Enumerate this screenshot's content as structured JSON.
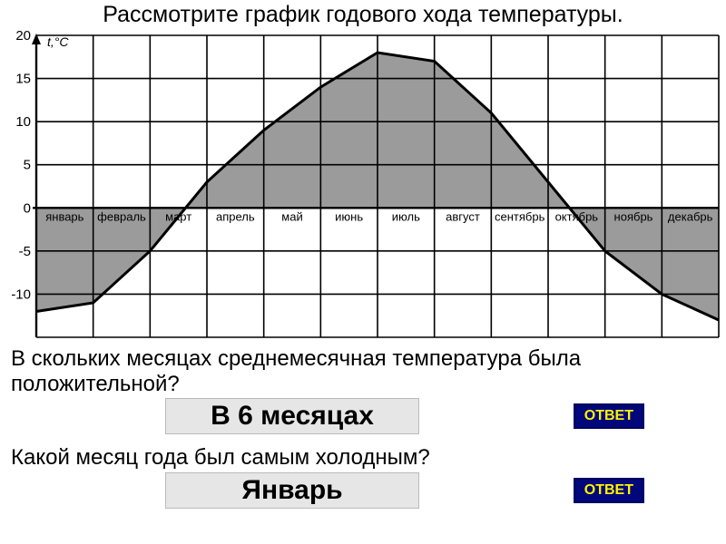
{
  "title": "Рассмотрите график годового хода температуры.",
  "chart": {
    "type": "area",
    "y_axis_label": "t,°C",
    "ylim": [
      -15,
      20
    ],
    "yticks": [
      -15,
      -10,
      -5,
      0,
      5,
      10,
      15,
      20
    ],
    "months": [
      "январь",
      "февраль",
      "март",
      "апрель",
      "май",
      "июнь",
      "июль",
      "август",
      "сентябрь",
      "октябрь",
      "ноябрь",
      "декабрь"
    ],
    "values_start": [
      -12,
      -11,
      -5,
      3,
      9,
      14,
      18,
      17,
      11,
      3,
      -5,
      -10
    ],
    "values_end": [
      -11,
      -5,
      3,
      9,
      14,
      18,
      17,
      11,
      3,
      -5,
      -10,
      -13
    ],
    "fill_color": "#8a8a8a",
    "line_color": "#000000",
    "line_width": 3,
    "grid_color": "#000000",
    "grid_width": 1.6,
    "background": "#ffffff",
    "month_font_size": 13,
    "tick_font_size": 15
  },
  "question1": "В скольких месяцах среднемесячная температура была положительной?",
  "answer1": "В 6 месяцах",
  "question2": "Какой месяц года был самым холодным?",
  "answer2": "Январь",
  "answer_button_label": "ОТВЕТ",
  "answer_box_bg": "#e6e6e6",
  "answer_btn_bg": "#00077a",
  "answer_btn_fg": "#fff200"
}
